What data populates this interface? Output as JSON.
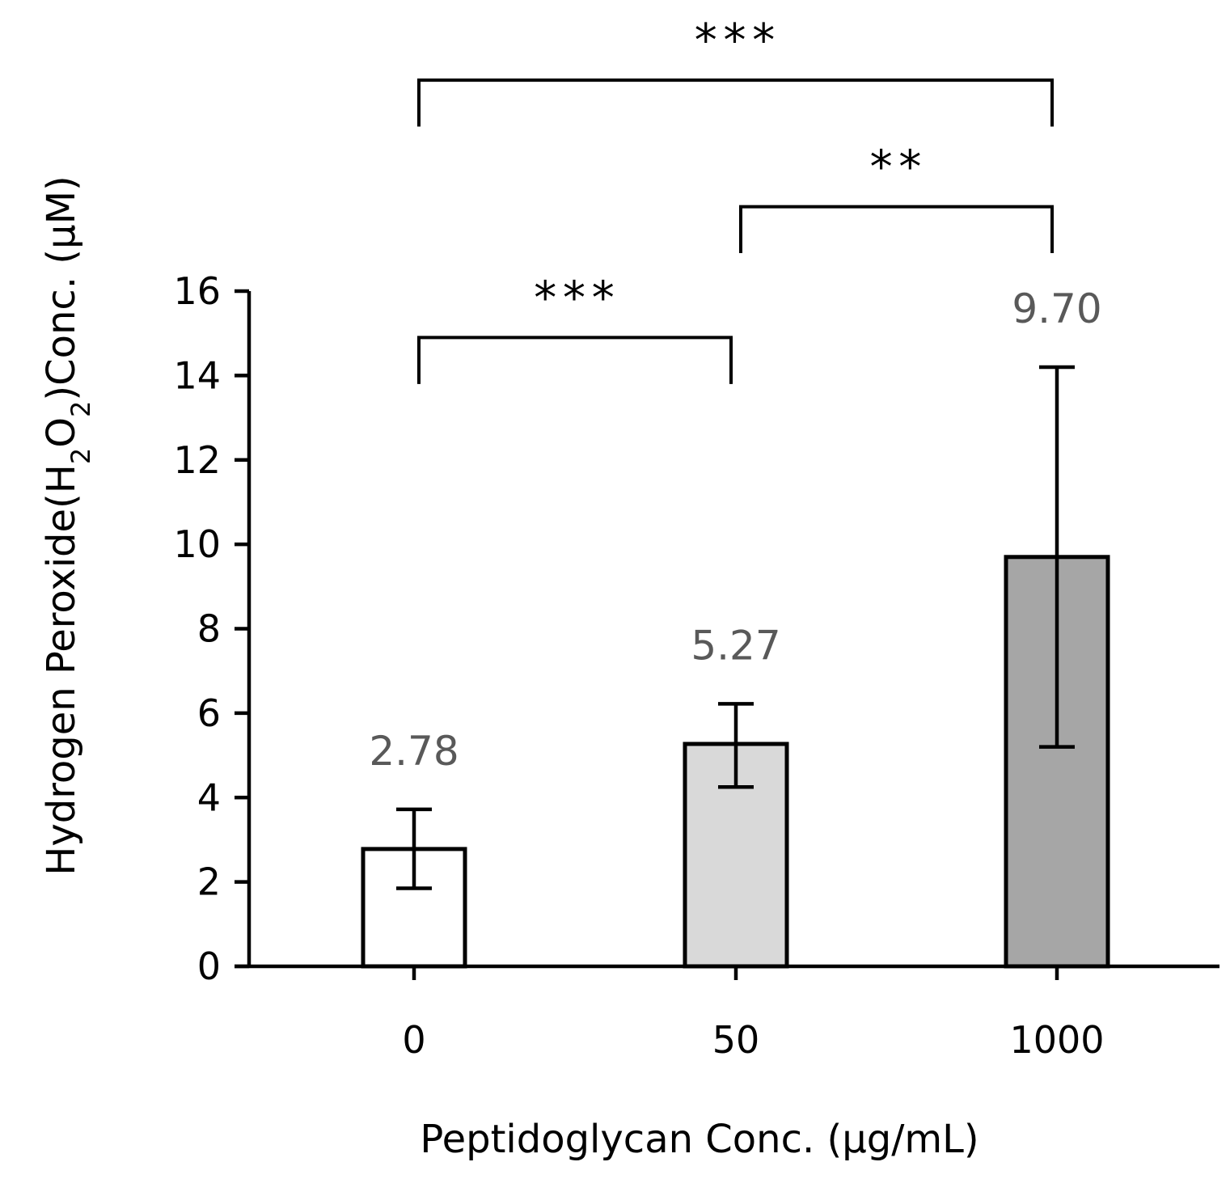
{
  "chart_data": {
    "type": "bar",
    "title": "",
    "categories": [
      "0",
      "50",
      "1000"
    ],
    "values": [
      2.78,
      5.27,
      9.7
    ],
    "value_labels": [
      "2.78",
      "5.27",
      "9.70"
    ],
    "error_bars": [
      {
        "low": 1.85,
        "high": 3.72
      },
      {
        "low": 4.25,
        "high": 6.22
      },
      {
        "low": 5.2,
        "high": 14.2
      }
    ],
    "bar_colors": [
      "#ffffff",
      "#d9d9d9",
      "#a6a6a6"
    ],
    "xlabel": "Peptidoglycan Conc. (µg/mL)",
    "ylabel": {
      "prefix": "Hydrogen Peroxide(H",
      "sub1": "2",
      "mid": "O",
      "sub2": "2",
      "suffix": ")Conc. (µM)"
    },
    "ylim": [
      0,
      16
    ],
    "yticks": [
      "0",
      "2",
      "4",
      "6",
      "8",
      "10",
      "12",
      "14",
      "16"
    ],
    "significance": [
      {
        "from": 0,
        "to": 1,
        "label": "***",
        "base": 13.8,
        "level": 14.9
      },
      {
        "from": 1,
        "to": 2,
        "label": "**",
        "base": 16.9,
        "level": 18.0
      },
      {
        "from": 0,
        "to": 2,
        "label": "***",
        "base": 19.9,
        "level": 21.0
      }
    ],
    "grid": false,
    "legend": "none"
  }
}
